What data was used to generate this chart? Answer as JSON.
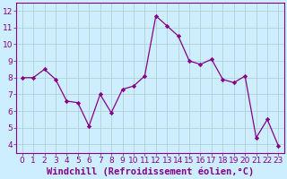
{
  "x": [
    0,
    1,
    2,
    3,
    4,
    5,
    6,
    7,
    8,
    9,
    10,
    11,
    12,
    13,
    14,
    15,
    16,
    17,
    18,
    19,
    20,
    21,
    22,
    23
  ],
  "y": [
    8.0,
    8.0,
    8.5,
    7.9,
    6.6,
    6.5,
    5.1,
    7.0,
    5.9,
    7.3,
    7.5,
    8.1,
    11.7,
    11.1,
    10.5,
    9.0,
    8.8,
    9.1,
    7.9,
    7.7,
    8.1,
    4.4,
    5.5,
    3.9
  ],
  "line_color": "#880088",
  "marker_color": "#880088",
  "bg_color": "#cceeff",
  "grid_color": "#aacccc",
  "xlabel": "Windchill (Refroidissement éolien,°C)",
  "xlabel_color": "#880088",
  "ylim": [
    3.5,
    12.5
  ],
  "xlim": [
    -0.5,
    23.5
  ],
  "yticks": [
    4,
    5,
    6,
    7,
    8,
    9,
    10,
    11,
    12
  ],
  "xticks": [
    0,
    1,
    2,
    3,
    4,
    5,
    6,
    7,
    8,
    9,
    10,
    11,
    12,
    13,
    14,
    15,
    16,
    17,
    18,
    19,
    20,
    21,
    22,
    23
  ],
  "tick_fontsize": 6.5,
  "xlabel_fontsize": 7.5
}
